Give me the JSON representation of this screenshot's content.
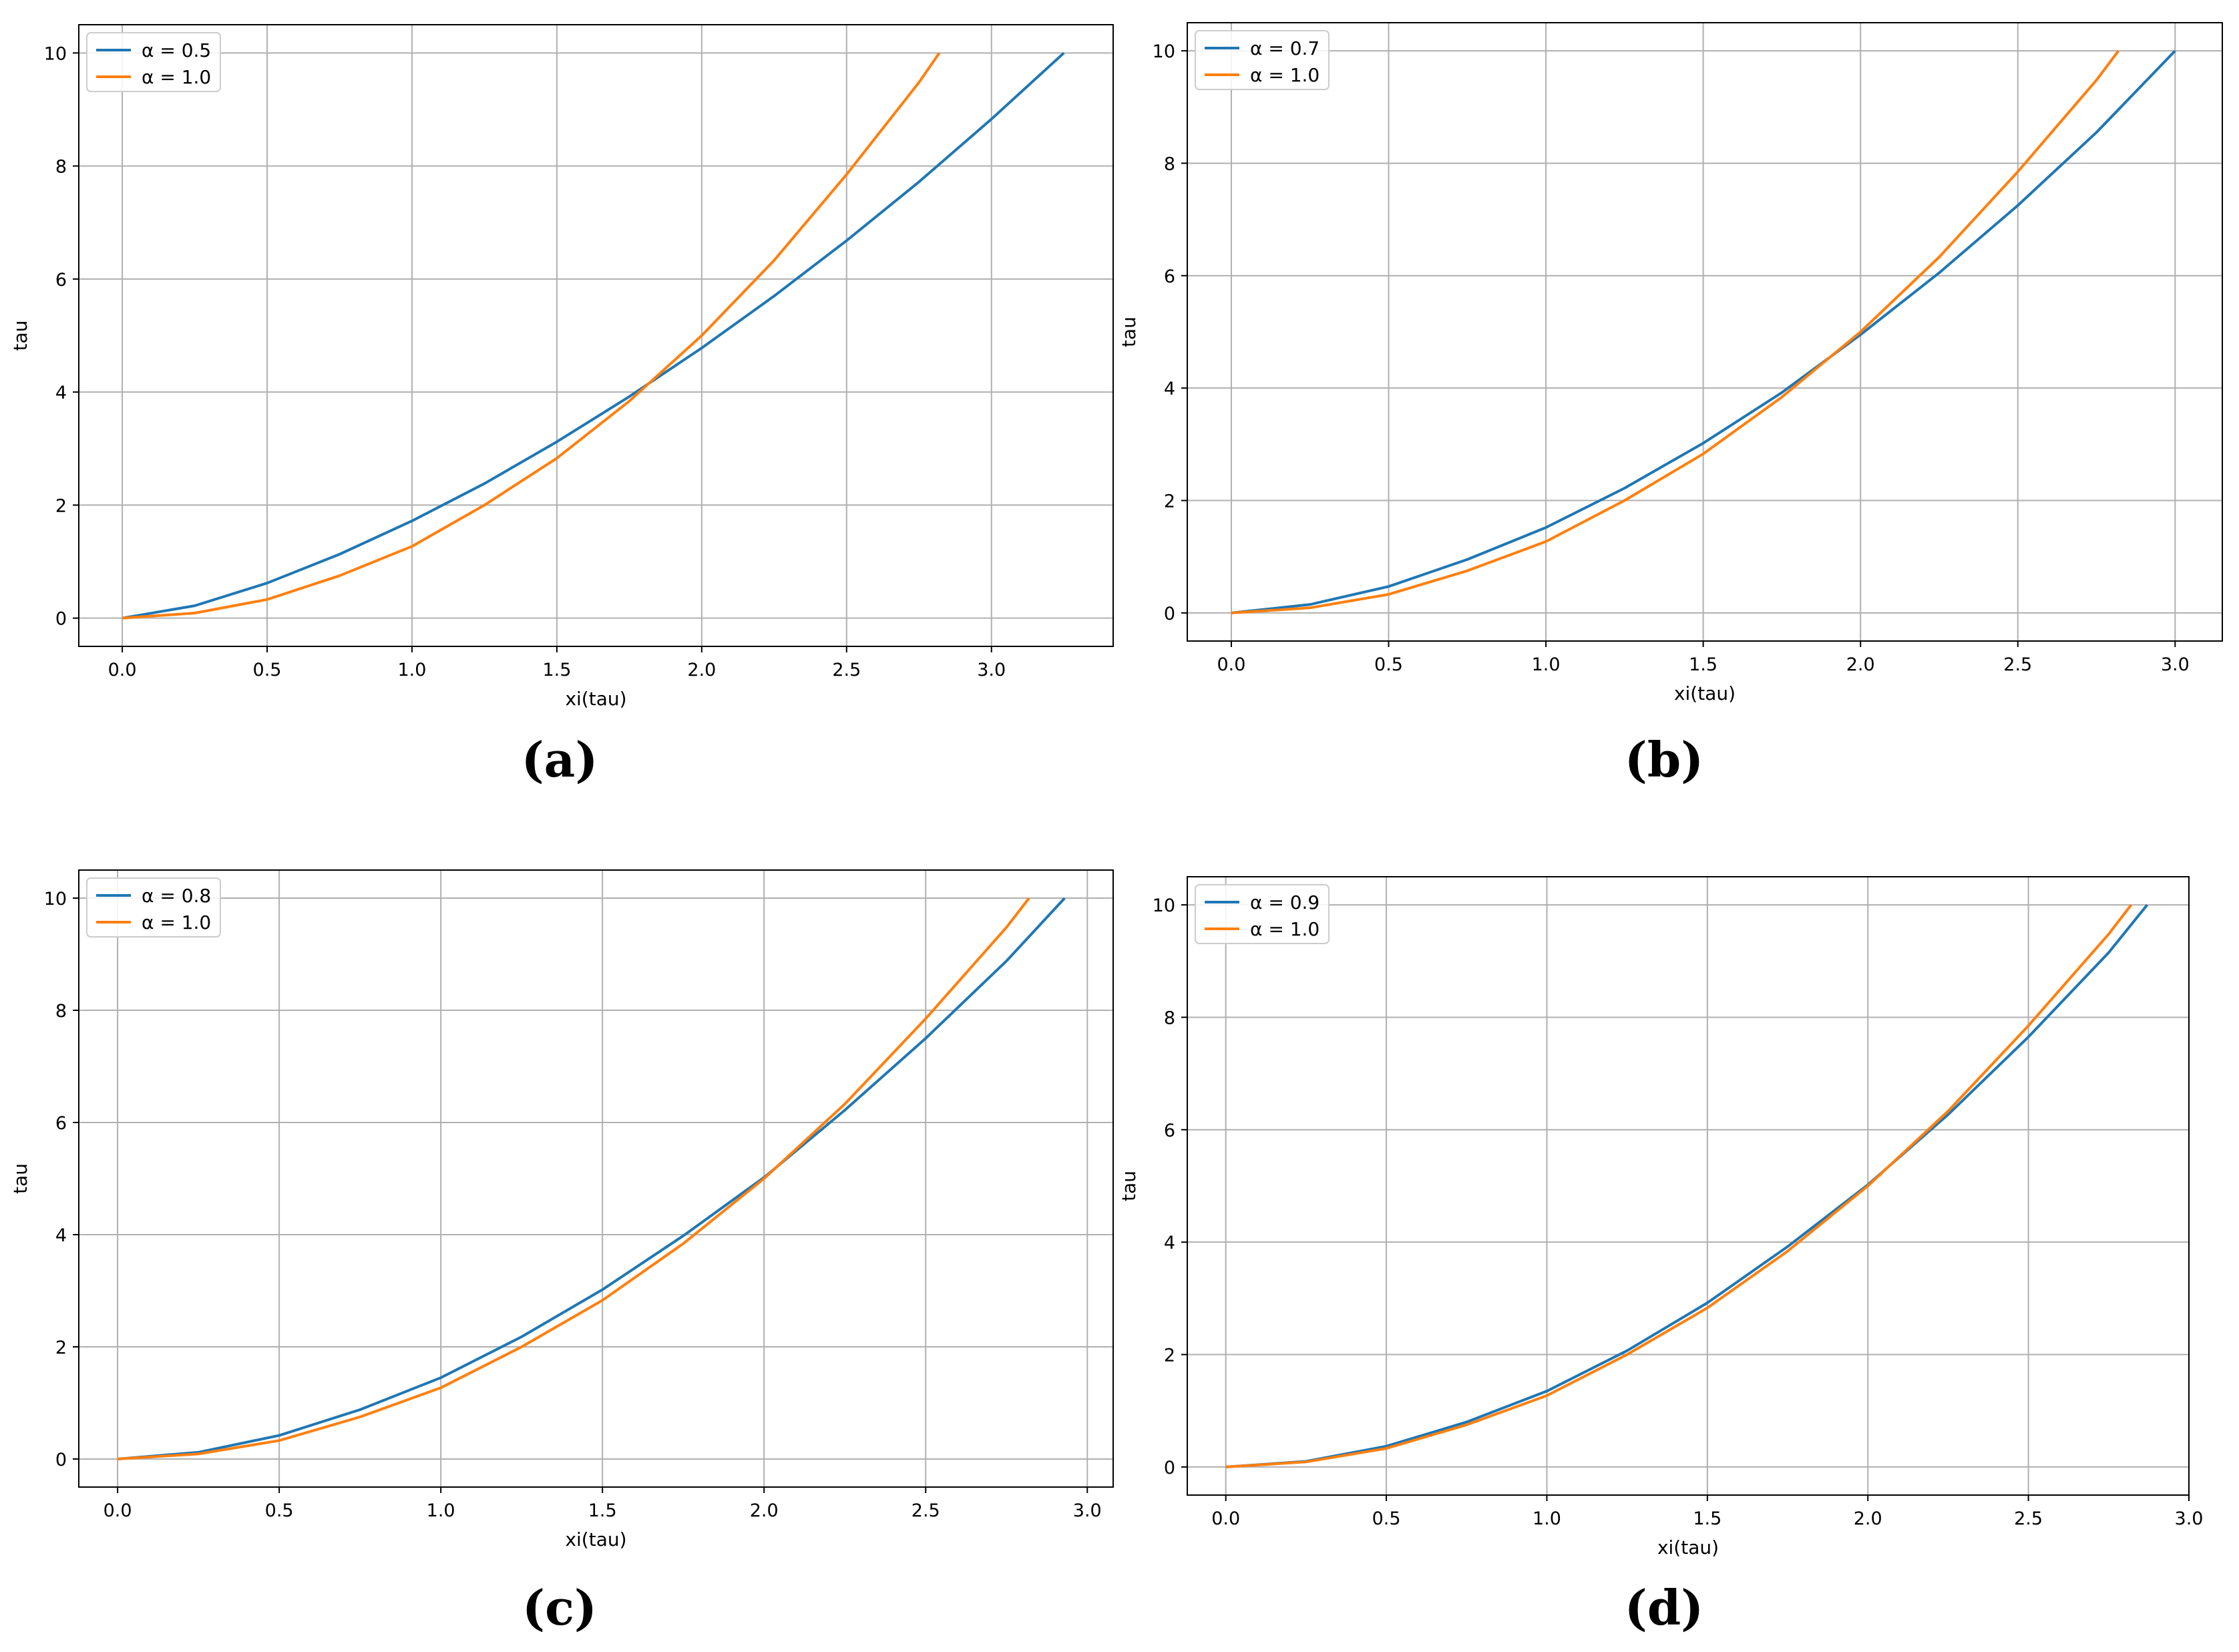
{
  "captions": [
    "(a)",
    "(b)",
    "(c)",
    "(d)"
  ],
  "colors": {
    "series_alpha": "#1f77b4",
    "series_reference": "#ff7f0e",
    "grid": "#b0b0b0"
  },
  "chart_data": [
    {
      "type": "line",
      "xlabel": "xi(tau)",
      "ylabel": "tau",
      "xlim": [
        -0.15,
        3.42
      ],
      "ylim": [
        -0.5,
        10.5
      ],
      "xticks": [
        "0.0",
        "0.5",
        "1.0",
        "1.5",
        "2.0",
        "2.5",
        "3.0"
      ],
      "yticks": [
        "0",
        "2",
        "4",
        "6",
        "8",
        "10"
      ],
      "grid": true,
      "legend_position": "top-left",
      "series": [
        {
          "name": "α = 0.5",
          "x": [
            0.0,
            0.25,
            0.5,
            0.75,
            1.0,
            1.25,
            1.5,
            1.75,
            2.0,
            2.25,
            2.5,
            2.75,
            3.0,
            3.25
          ],
          "y": [
            0.0,
            0.22,
            0.62,
            1.13,
            1.72,
            2.38,
            3.12,
            3.92,
            4.78,
            5.7,
            6.68,
            7.72,
            8.83,
            10.0
          ]
        },
        {
          "name": "α = 1.0",
          "x": [
            0.0,
            0.25,
            0.5,
            0.75,
            1.0,
            1.25,
            1.5,
            1.75,
            2.0,
            2.25,
            2.5,
            2.75,
            2.82
          ],
          "y": [
            0.0,
            0.09,
            0.33,
            0.75,
            1.27,
            2.0,
            2.83,
            3.84,
            5.0,
            6.33,
            7.85,
            9.48,
            10.0
          ]
        }
      ]
    },
    {
      "type": "line",
      "xlabel": "xi(tau)",
      "ylabel": "tau",
      "xlim": [
        -0.14,
        3.15
      ],
      "ylim": [
        -0.5,
        10.5
      ],
      "xticks": [
        "0.0",
        "0.5",
        "1.0",
        "1.5",
        "2.0",
        "2.5",
        "3.0"
      ],
      "yticks": [
        "0",
        "2",
        "4",
        "6",
        "8",
        "10"
      ],
      "grid": true,
      "legend_position": "top-left",
      "series": [
        {
          "name": "α = 0.7",
          "x": [
            0.0,
            0.25,
            0.5,
            0.75,
            1.0,
            1.25,
            1.5,
            1.75,
            2.0,
            2.25,
            2.5,
            2.75,
            3.0
          ],
          "y": [
            0.0,
            0.15,
            0.47,
            0.95,
            1.52,
            2.22,
            3.02,
            3.92,
            4.95,
            6.05,
            7.25,
            8.55,
            10.0
          ]
        },
        {
          "name": "α = 1.0",
          "x": [
            0.0,
            0.25,
            0.5,
            0.75,
            1.0,
            1.25,
            1.5,
            1.75,
            2.0,
            2.25,
            2.5,
            2.75,
            2.82
          ],
          "y": [
            0.0,
            0.09,
            0.33,
            0.75,
            1.27,
            2.0,
            2.83,
            3.84,
            5.0,
            6.33,
            7.85,
            9.48,
            10.0
          ]
        }
      ]
    },
    {
      "type": "line",
      "xlabel": "xi(tau)",
      "ylabel": "tau",
      "xlim": [
        -0.12,
        3.08
      ],
      "ylim": [
        -0.5,
        10.5
      ],
      "xticks": [
        "0.0",
        "0.5",
        "1.0",
        "1.5",
        "2.0",
        "2.5",
        "3.0"
      ],
      "yticks": [
        "0",
        "2",
        "4",
        "6",
        "8",
        "10"
      ],
      "grid": true,
      "legend_position": "top-left",
      "series": [
        {
          "name": "α = 0.8",
          "x": [
            0.0,
            0.25,
            0.5,
            0.75,
            1.0,
            1.25,
            1.5,
            1.75,
            2.0,
            2.25,
            2.5,
            2.75,
            2.93
          ],
          "y": [
            0.0,
            0.12,
            0.42,
            0.88,
            1.45,
            2.18,
            3.02,
            3.98,
            5.02,
            6.22,
            7.5,
            8.88,
            10.0
          ]
        },
        {
          "name": "α = 1.0",
          "x": [
            0.0,
            0.25,
            0.5,
            0.75,
            1.0,
            1.25,
            1.5,
            1.75,
            2.0,
            2.25,
            2.5,
            2.75,
            2.82
          ],
          "y": [
            0.0,
            0.09,
            0.33,
            0.75,
            1.27,
            2.0,
            2.83,
            3.84,
            5.0,
            6.33,
            7.85,
            9.48,
            10.0
          ]
        }
      ]
    },
    {
      "type": "line",
      "xlabel": "xi(tau)",
      "ylabel": "tau",
      "xlim": [
        -0.12,
        3.0
      ],
      "ylim": [
        -0.5,
        10.5
      ],
      "xticks": [
        "0.0",
        "0.5",
        "1.0",
        "1.5",
        "2.0",
        "2.5",
        "3.0"
      ],
      "yticks": [
        "0",
        "2",
        "4",
        "6",
        "8",
        "10"
      ],
      "grid": true,
      "legend_position": "top-left",
      "series": [
        {
          "name": "α = 0.9",
          "x": [
            0.0,
            0.25,
            0.5,
            0.75,
            1.0,
            1.25,
            1.5,
            1.75,
            2.0,
            2.25,
            2.5,
            2.75,
            2.87
          ],
          "y": [
            0.0,
            0.1,
            0.37,
            0.8,
            1.35,
            2.07,
            2.92,
            3.92,
            5.02,
            6.27,
            7.65,
            9.15,
            10.0
          ]
        },
        {
          "name": "α = 1.0",
          "x": [
            0.0,
            0.25,
            0.5,
            0.75,
            1.0,
            1.25,
            1.5,
            1.75,
            2.0,
            2.25,
            2.5,
            2.75,
            2.82
          ],
          "y": [
            0.0,
            0.09,
            0.33,
            0.75,
            1.27,
            2.0,
            2.83,
            3.84,
            5.0,
            6.33,
            7.85,
            9.48,
            10.0
          ]
        }
      ]
    }
  ]
}
